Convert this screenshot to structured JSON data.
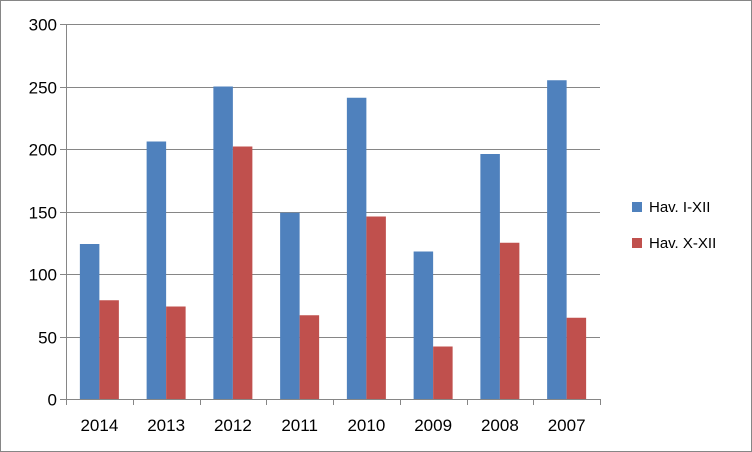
{
  "chart_data": {
    "type": "bar",
    "title": "",
    "xlabel": "",
    "ylabel": "",
    "categories": [
      "2014",
      "2013",
      "2012",
      "2011",
      "2010",
      "2009",
      "2008",
      "2007"
    ],
    "series": [
      {
        "name": "Hav. I-XII",
        "color": "#4f81bd",
        "values": [
          124,
          206,
          250,
          149,
          241,
          118,
          196,
          255
        ]
      },
      {
        "name": "Hav. X-XII",
        "color": "#c0504d",
        "values": [
          79,
          74,
          202,
          67,
          146,
          42,
          125,
          65
        ]
      }
    ],
    "ylim": [
      0,
      300
    ],
    "yticks": [
      "0",
      "50",
      "100",
      "150",
      "200",
      "250",
      "300"
    ],
    "grid": true,
    "legend_position": "right"
  }
}
